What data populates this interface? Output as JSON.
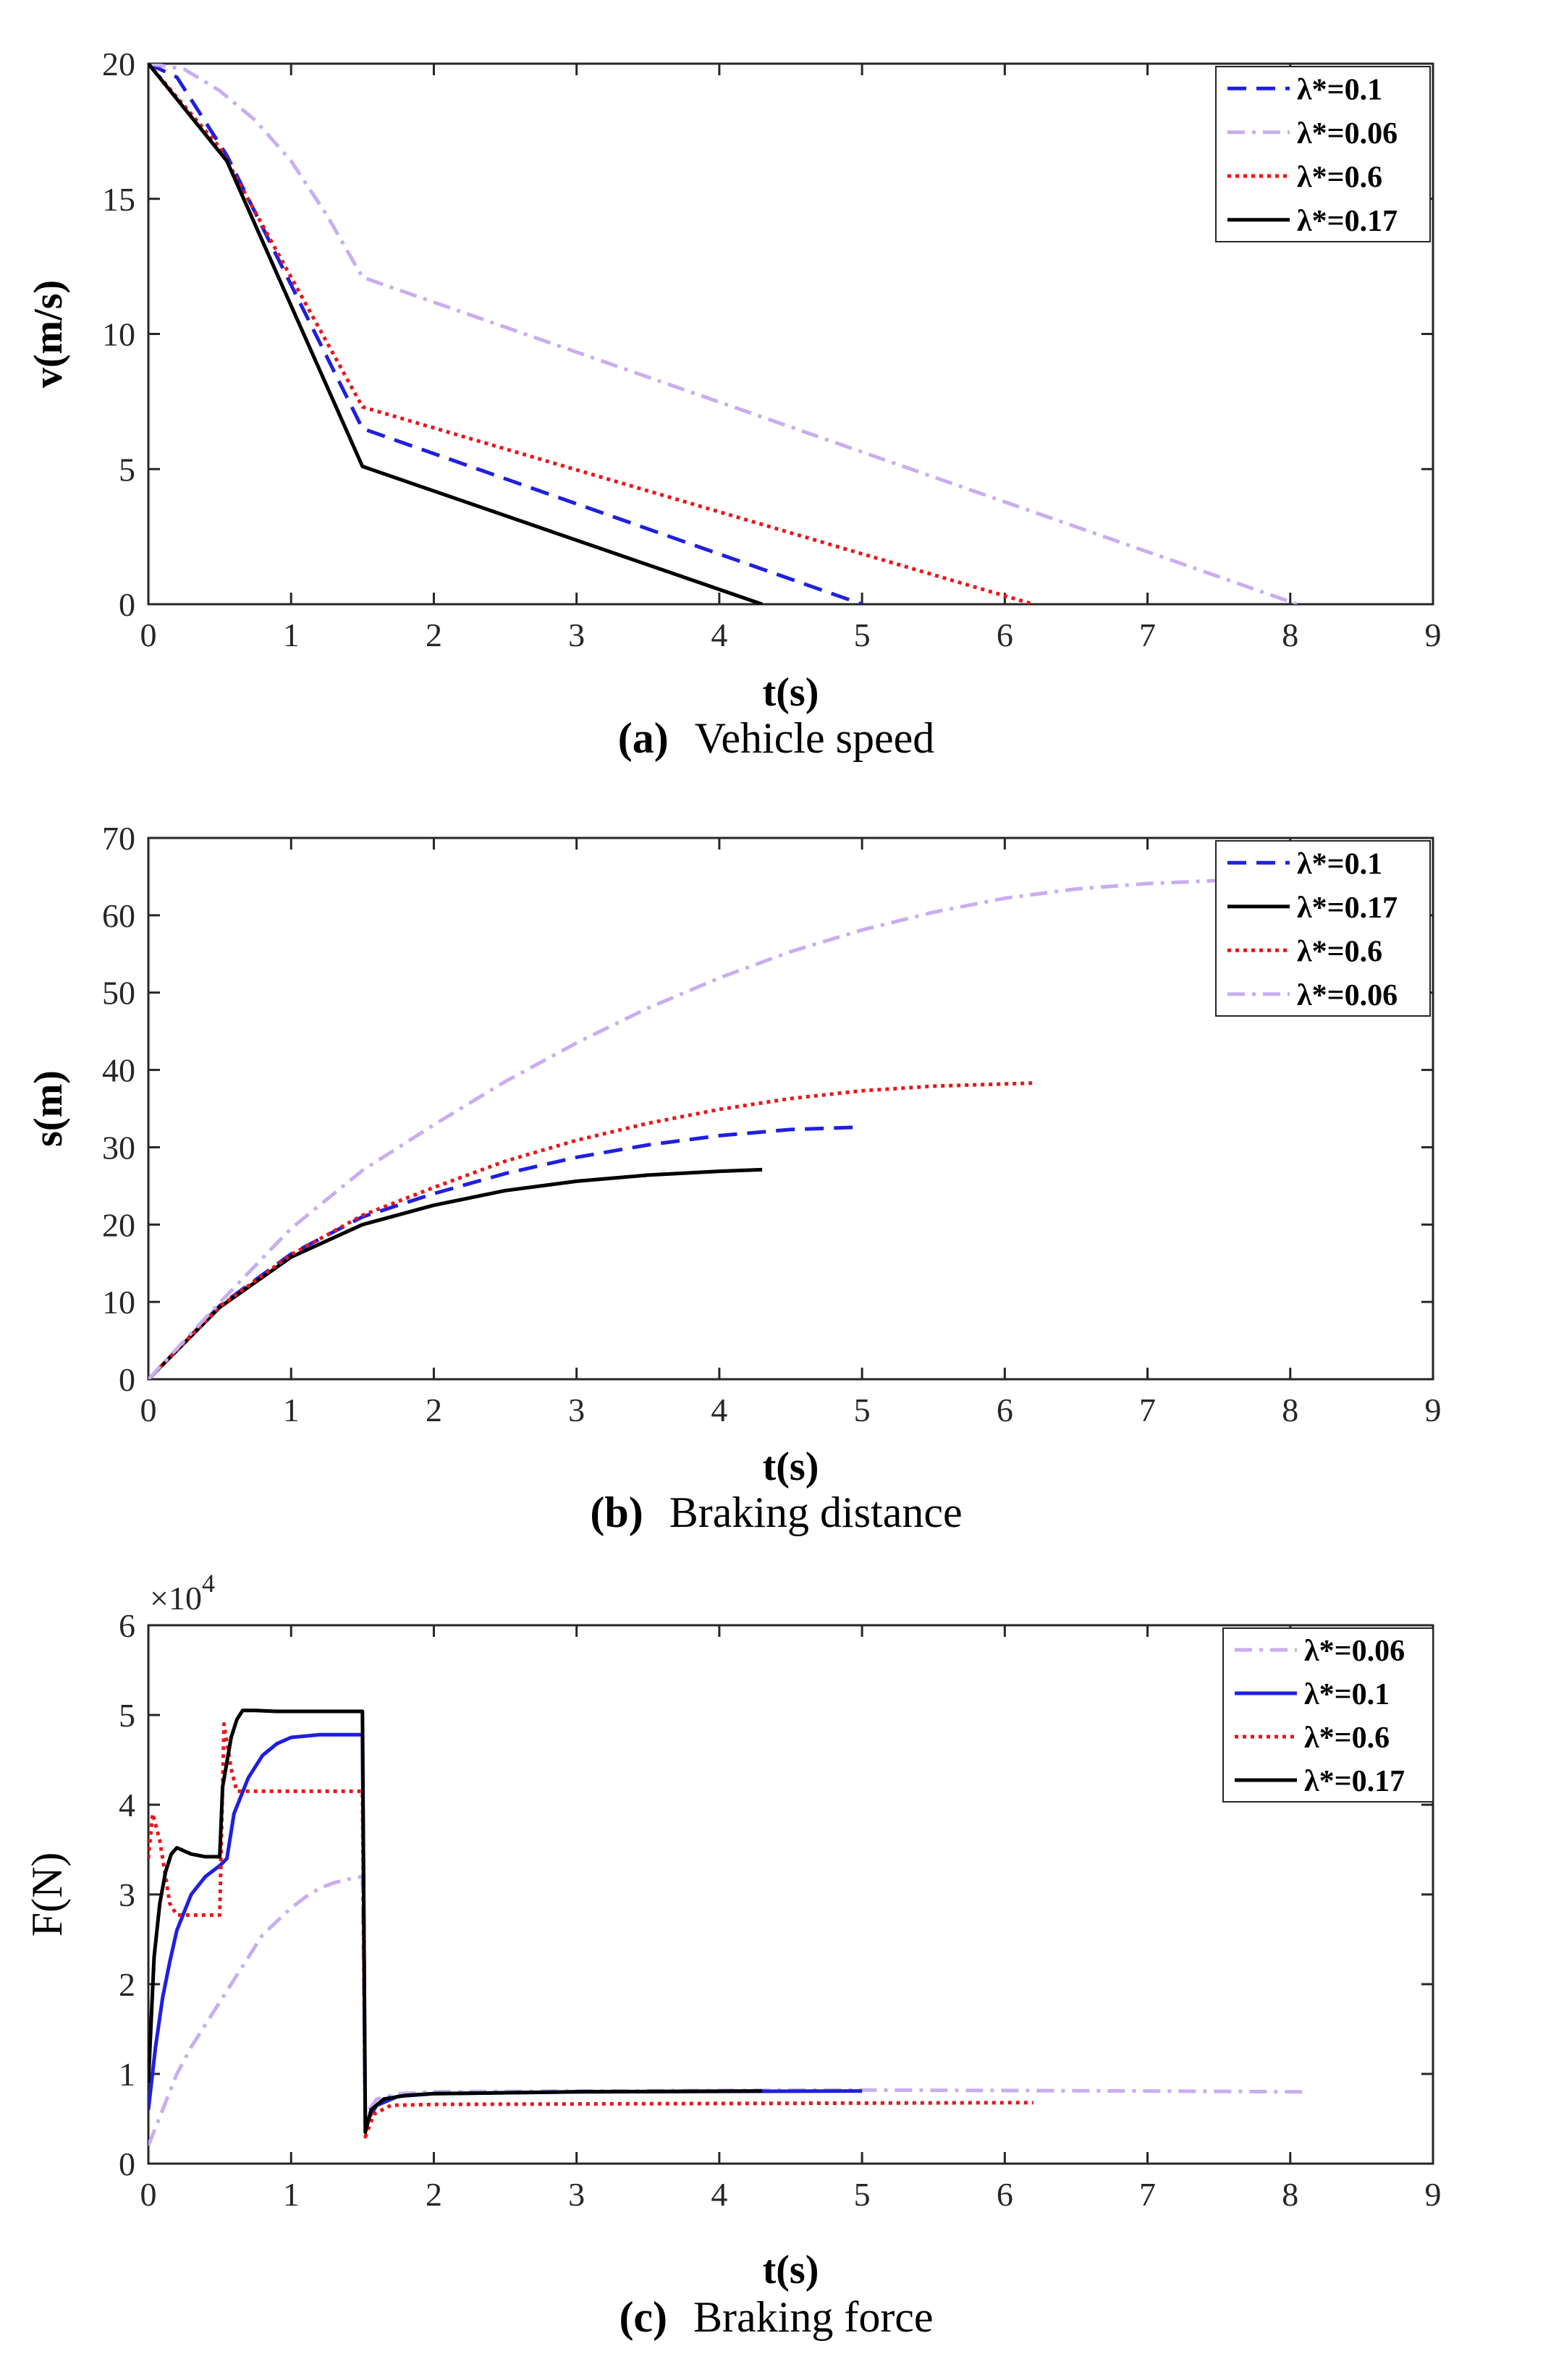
{
  "chart_data": [
    {
      "type": "line",
      "panel": "a",
      "caption_label": "(a)",
      "caption_text": "Vehicle speed",
      "xlabel": "t(s)",
      "ylabel": "v(m/s)",
      "xlim": [
        0,
        9
      ],
      "ylim": [
        0,
        20
      ],
      "xticks": [
        0,
        1,
        2,
        3,
        4,
        5,
        6,
        7,
        8,
        9
      ],
      "yticks": [
        0,
        5,
        10,
        15,
        20
      ],
      "legend_position": "top-right",
      "series": [
        {
          "name": "λ*=0.1",
          "color": "#1f1fdf",
          "style": "dashed",
          "points": [
            [
              0,
              20
            ],
            [
              0.2,
              19.5
            ],
            [
              0.55,
              16.6
            ],
            [
              1.5,
              6.5
            ],
            [
              5.0,
              0
            ]
          ]
        },
        {
          "name": "λ*=0.06",
          "color": "#c8aef0",
          "style": "dashdot",
          "points": [
            [
              0,
              20
            ],
            [
              0.25,
              19.8
            ],
            [
              0.5,
              19.0
            ],
            [
              0.75,
              17.9
            ],
            [
              1.0,
              16.4
            ],
            [
              1.25,
              14.4
            ],
            [
              1.5,
              12.1
            ],
            [
              8.05,
              0
            ]
          ]
        },
        {
          "name": "λ*=0.6",
          "color": "#e8161a",
          "style": "dotted",
          "points": [
            [
              0,
              20
            ],
            [
              0.5,
              16.9
            ],
            [
              1.5,
              7.3
            ],
            [
              6.2,
              0
            ]
          ]
        },
        {
          "name": "λ*=0.17",
          "color": "#000000",
          "style": "solid",
          "points": [
            [
              0,
              20
            ],
            [
              0.55,
              16.4
            ],
            [
              1.5,
              5.1
            ],
            [
              4.3,
              0
            ]
          ]
        }
      ]
    },
    {
      "type": "line",
      "panel": "b",
      "caption_label": "(b)",
      "caption_text": "Braking distance",
      "xlabel": "t(s)",
      "ylabel": "s(m)",
      "xlim": [
        0,
        9
      ],
      "ylim": [
        0,
        70
      ],
      "xticks": [
        0,
        1,
        2,
        3,
        4,
        5,
        6,
        7,
        8,
        9
      ],
      "yticks": [
        0,
        10,
        20,
        30,
        40,
        50,
        60,
        70
      ],
      "legend_position": "top-right",
      "series": [
        {
          "name": "λ*=0.1",
          "color": "#1f1fdf",
          "style": "dashed",
          "points": [
            [
              0,
              0
            ],
            [
              0.5,
              9.5
            ],
            [
              1,
              16.2
            ],
            [
              1.5,
              21
            ],
            [
              2,
              24
            ],
            [
              2.5,
              26.6
            ],
            [
              3,
              28.7
            ],
            [
              3.5,
              30.3
            ],
            [
              4,
              31.5
            ],
            [
              4.5,
              32.3
            ],
            [
              5,
              32.6
            ]
          ]
        },
        {
          "name": "λ*=0.17",
          "color": "#000000",
          "style": "solid",
          "points": [
            [
              0,
              0
            ],
            [
              0.5,
              9.3
            ],
            [
              1,
              15.8
            ],
            [
              1.5,
              20
            ],
            [
              2,
              22.5
            ],
            [
              2.5,
              24.4
            ],
            [
              3,
              25.6
            ],
            [
              3.5,
              26.4
            ],
            [
              4,
              26.9
            ],
            [
              4.3,
              27.1
            ]
          ]
        },
        {
          "name": "λ*=0.6",
          "color": "#e8161a",
          "style": "dotted",
          "points": [
            [
              0,
              0
            ],
            [
              0.5,
              9.4
            ],
            [
              1,
              16.1
            ],
            [
              1.5,
              21.2
            ],
            [
              2,
              24.8
            ],
            [
              2.5,
              28.2
            ],
            [
              3,
              30.9
            ],
            [
              3.5,
              33.1
            ],
            [
              4,
              34.9
            ],
            [
              4.5,
              36.3
            ],
            [
              5,
              37.3
            ],
            [
              5.5,
              37.9
            ],
            [
              6.2,
              38.3
            ]
          ]
        },
        {
          "name": "λ*=0.06",
          "color": "#c8aef0",
          "style": "dashdot",
          "points": [
            [
              0,
              0
            ],
            [
              0.5,
              9.9
            ],
            [
              1,
              19.5
            ],
            [
              1.5,
              27
            ],
            [
              2,
              32.9
            ],
            [
              2.5,
              38.5
            ],
            [
              3,
              43.5
            ],
            [
              3.5,
              48
            ],
            [
              4,
              51.9
            ],
            [
              4.5,
              55.3
            ],
            [
              5,
              58.1
            ],
            [
              5.5,
              60.4
            ],
            [
              6,
              62.2
            ],
            [
              6.5,
              63.4
            ],
            [
              7,
              64.1
            ],
            [
              7.5,
              64.5
            ]
          ]
        }
      ]
    },
    {
      "type": "line",
      "panel": "c",
      "caption_label": "(c)",
      "caption_text": "Braking force",
      "xlabel": "t(s)",
      "ylabel": "F(N)",
      "y_multiplier_base": "×10",
      "y_multiplier_exp": "4",
      "xlim": [
        0,
        9
      ],
      "ylim": [
        0,
        6
      ],
      "xticks": [
        0,
        1,
        2,
        3,
        4,
        5,
        6,
        7,
        8,
        9
      ],
      "yticks": [
        0,
        1,
        2,
        3,
        4,
        5,
        6
      ],
      "legend_position": "top-right",
      "series": [
        {
          "name": "λ*=0.06",
          "color": "#c8aef0",
          "style": "dashdot",
          "points": [
            [
              0,
              0.2
            ],
            [
              0.1,
              0.6
            ],
            [
              0.2,
              1.0
            ],
            [
              0.3,
              1.3
            ],
            [
              0.4,
              1.55
            ],
            [
              0.5,
              1.8
            ],
            [
              0.6,
              2.05
            ],
            [
              0.7,
              2.3
            ],
            [
              0.8,
              2.55
            ],
            [
              0.9,
              2.7
            ],
            [
              1.0,
              2.85
            ],
            [
              1.1,
              2.97
            ],
            [
              1.2,
              3.07
            ],
            [
              1.3,
              3.13
            ],
            [
              1.4,
              3.17
            ],
            [
              1.5,
              3.2
            ],
            [
              1.52,
              0.55
            ],
            [
              1.6,
              0.72
            ],
            [
              1.75,
              0.78
            ],
            [
              2.0,
              0.8
            ],
            [
              3,
              0.81
            ],
            [
              5,
              0.82
            ],
            [
              7,
              0.81
            ],
            [
              8.1,
              0.8
            ]
          ]
        },
        {
          "name": "λ*=0.1",
          "color": "#1f1fdf",
          "style": "solid",
          "points": [
            [
              0,
              0.6
            ],
            [
              0.05,
              1.3
            ],
            [
              0.1,
              1.85
            ],
            [
              0.15,
              2.25
            ],
            [
              0.2,
              2.6
            ],
            [
              0.3,
              3.0
            ],
            [
              0.4,
              3.2
            ],
            [
              0.5,
              3.32
            ],
            [
              0.55,
              3.4
            ],
            [
              0.6,
              3.9
            ],
            [
              0.7,
              4.3
            ],
            [
              0.8,
              4.55
            ],
            [
              0.9,
              4.68
            ],
            [
              1.0,
              4.75
            ],
            [
              1.2,
              4.78
            ],
            [
              1.5,
              4.78
            ],
            [
              1.52,
              0.45
            ],
            [
              1.6,
              0.65
            ],
            [
              1.75,
              0.75
            ],
            [
              2.0,
              0.78
            ],
            [
              3,
              0.8
            ],
            [
              5,
              0.81
            ]
          ]
        },
        {
          "name": "λ*=0.6",
          "color": "#e8161a",
          "style": "dotted",
          "points": [
            [
              0,
              3.4
            ],
            [
              0.03,
              3.9
            ],
            [
              0.08,
              3.6
            ],
            [
              0.15,
              2.9
            ],
            [
              0.2,
              2.77
            ],
            [
              0.5,
              2.77
            ],
            [
              0.53,
              4.9
            ],
            [
              0.58,
              4.4
            ],
            [
              0.62,
              4.15
            ],
            [
              0.7,
              4.15
            ],
            [
              1.5,
              4.15
            ],
            [
              1.52,
              0.3
            ],
            [
              1.58,
              0.55
            ],
            [
              1.7,
              0.65
            ],
            [
              2.0,
              0.66
            ],
            [
              4,
              0.67
            ],
            [
              6.2,
              0.68
            ]
          ]
        },
        {
          "name": "λ*=0.17",
          "color": "#000000",
          "style": "solid",
          "points": [
            [
              0,
              0.9
            ],
            [
              0.04,
              2.3
            ],
            [
              0.08,
              2.9
            ],
            [
              0.12,
              3.25
            ],
            [
              0.16,
              3.45
            ],
            [
              0.2,
              3.52
            ],
            [
              0.3,
              3.45
            ],
            [
              0.4,
              3.42
            ],
            [
              0.5,
              3.42
            ],
            [
              0.52,
              4.2
            ],
            [
              0.58,
              4.75
            ],
            [
              0.62,
              4.95
            ],
            [
              0.66,
              5.05
            ],
            [
              0.75,
              5.05
            ],
            [
              0.9,
              5.04
            ],
            [
              1.5,
              5.04
            ],
            [
              1.52,
              0.35
            ],
            [
              1.56,
              0.6
            ],
            [
              1.65,
              0.72
            ],
            [
              1.8,
              0.76
            ],
            [
              2.0,
              0.78
            ],
            [
              3,
              0.8
            ],
            [
              4.3,
              0.81
            ]
          ]
        }
      ]
    }
  ]
}
